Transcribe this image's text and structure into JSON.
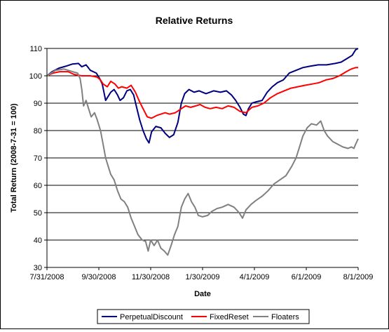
{
  "chart_data": {
    "type": "line",
    "title": "Relative Returns",
    "xlabel": "Date",
    "ylabel": "Total Return (2008-7-31 = 100)",
    "ylim": [
      30,
      110
    ],
    "yticks": [
      30,
      40,
      50,
      60,
      70,
      80,
      90,
      100,
      110
    ],
    "xlim": [
      "2008-07-31",
      "2009-08-01"
    ],
    "xticks": [
      {
        "date": "2008-07-31",
        "label": "7/31/2008"
      },
      {
        "date": "2008-09-30",
        "label": "9/30/2008"
      },
      {
        "date": "2008-11-30",
        "label": "11/30/2008"
      },
      {
        "date": "2009-01-30",
        "label": "1/30/2009"
      },
      {
        "date": "2009-04-01",
        "label": "4/1/2009"
      },
      {
        "date": "2009-06-01",
        "label": "6/1/2009"
      },
      {
        "date": "2009-08-01",
        "label": "8/1/2009"
      }
    ],
    "grid": "horizontal",
    "legend_position": "bottom",
    "series": [
      {
        "name": "PerpetualDiscount",
        "color": "#00007f",
        "points": [
          [
            "2008-07-31",
            100.0
          ],
          [
            "2008-08-06",
            101.5
          ],
          [
            "2008-08-14",
            102.8
          ],
          [
            "2008-08-22",
            103.5
          ],
          [
            "2008-08-30",
            104.3
          ],
          [
            "2008-09-06",
            104.5
          ],
          [
            "2008-09-10",
            103.3
          ],
          [
            "2008-09-15",
            104.0
          ],
          [
            "2008-09-20",
            102.0
          ],
          [
            "2008-09-27",
            101.0
          ],
          [
            "2008-10-01",
            99.0
          ],
          [
            "2008-10-04",
            97.0
          ],
          [
            "2008-10-08",
            91.0
          ],
          [
            "2008-10-11",
            92.5
          ],
          [
            "2008-10-14",
            94.0
          ],
          [
            "2008-10-18",
            95.0
          ],
          [
            "2008-10-22",
            93.0
          ],
          [
            "2008-10-25",
            91.0
          ],
          [
            "2008-10-29",
            92.0
          ],
          [
            "2008-11-02",
            94.5
          ],
          [
            "2008-11-06",
            95.0
          ],
          [
            "2008-11-10",
            93.0
          ],
          [
            "2008-11-13",
            89.0
          ],
          [
            "2008-11-17",
            84.0
          ],
          [
            "2008-11-21",
            80.0
          ],
          [
            "2008-11-25",
            77.0
          ],
          [
            "2008-11-28",
            75.5
          ],
          [
            "2008-12-01",
            79.5
          ],
          [
            "2008-12-06",
            81.5
          ],
          [
            "2008-12-12",
            81.0
          ],
          [
            "2008-12-17",
            79.0
          ],
          [
            "2008-12-22",
            77.5
          ],
          [
            "2008-12-27",
            78.5
          ],
          [
            "2009-01-01",
            83.0
          ],
          [
            "2009-01-05",
            90.0
          ],
          [
            "2009-01-09",
            93.5
          ],
          [
            "2009-01-14",
            95.0
          ],
          [
            "2009-01-20",
            94.0
          ],
          [
            "2009-01-26",
            94.5
          ],
          [
            "2009-02-03",
            93.5
          ],
          [
            "2009-02-12",
            94.5
          ],
          [
            "2009-02-20",
            94.0
          ],
          [
            "2009-02-27",
            94.5
          ],
          [
            "2009-03-05",
            93.0
          ],
          [
            "2009-03-10",
            91.0
          ],
          [
            "2009-03-15",
            88.5
          ],
          [
            "2009-03-19",
            86.0
          ],
          [
            "2009-03-22",
            85.5
          ],
          [
            "2009-03-25",
            88.0
          ],
          [
            "2009-03-29",
            90.0
          ],
          [
            "2009-04-03",
            90.5
          ],
          [
            "2009-04-10",
            91.0
          ],
          [
            "2009-04-16",
            94.0
          ],
          [
            "2009-04-22",
            96.0
          ],
          [
            "2009-04-28",
            97.5
          ],
          [
            "2009-05-05",
            98.5
          ],
          [
            "2009-05-12",
            101.0
          ],
          [
            "2009-05-20",
            102.0
          ],
          [
            "2009-05-28",
            103.0
          ],
          [
            "2009-06-05",
            103.5
          ],
          [
            "2009-06-15",
            104.0
          ],
          [
            "2009-06-25",
            104.0
          ],
          [
            "2009-07-05",
            104.5
          ],
          [
            "2009-07-12",
            105.0
          ],
          [
            "2009-07-20",
            106.5
          ],
          [
            "2009-07-25",
            107.5
          ],
          [
            "2009-07-29",
            109.5
          ],
          [
            "2009-08-01",
            110.0
          ]
        ]
      },
      {
        "name": "FixedReset",
        "color": "#ff0000",
        "points": [
          [
            "2008-07-31",
            100.0
          ],
          [
            "2008-08-07",
            101.0
          ],
          [
            "2008-08-15",
            101.5
          ],
          [
            "2008-08-25",
            101.5
          ],
          [
            "2008-09-01",
            100.5
          ],
          [
            "2008-09-10",
            100.0
          ],
          [
            "2008-09-20",
            100.0
          ],
          [
            "2008-09-28",
            99.5
          ],
          [
            "2008-10-02",
            98.5
          ],
          [
            "2008-10-05",
            97.0
          ],
          [
            "2008-10-10",
            96.0
          ],
          [
            "2008-10-14",
            98.0
          ],
          [
            "2008-10-19",
            97.0
          ],
          [
            "2008-10-23",
            95.5
          ],
          [
            "2008-10-27",
            96.0
          ],
          [
            "2008-11-02",
            95.5
          ],
          [
            "2008-11-07",
            96.5
          ],
          [
            "2008-11-12",
            94.0
          ],
          [
            "2008-11-17",
            90.5
          ],
          [
            "2008-11-21",
            88.0
          ],
          [
            "2008-11-26",
            85.0
          ],
          [
            "2008-12-01",
            84.5
          ],
          [
            "2008-12-07",
            85.5
          ],
          [
            "2008-12-12",
            86.0
          ],
          [
            "2008-12-17",
            86.5
          ],
          [
            "2008-12-22",
            86.0
          ],
          [
            "2008-12-29",
            86.5
          ],
          [
            "2009-01-05",
            88.0
          ],
          [
            "2009-01-10",
            89.0
          ],
          [
            "2009-01-16",
            88.5
          ],
          [
            "2009-01-22",
            89.0
          ],
          [
            "2009-01-27",
            89.5
          ],
          [
            "2009-02-02",
            88.5
          ],
          [
            "2009-02-08",
            88.0
          ],
          [
            "2009-02-15",
            88.5
          ],
          [
            "2009-02-22",
            88.0
          ],
          [
            "2009-03-01",
            89.0
          ],
          [
            "2009-03-08",
            88.5
          ],
          [
            "2009-03-15",
            87.0
          ],
          [
            "2009-03-22",
            86.5
          ],
          [
            "2009-03-29",
            88.5
          ],
          [
            "2009-04-05",
            89.0
          ],
          [
            "2009-04-12",
            90.0
          ],
          [
            "2009-04-20",
            92.0
          ],
          [
            "2009-04-28",
            93.5
          ],
          [
            "2009-05-06",
            94.5
          ],
          [
            "2009-05-14",
            95.5
          ],
          [
            "2009-05-22",
            96.0
          ],
          [
            "2009-05-30",
            96.5
          ],
          [
            "2009-06-08",
            97.0
          ],
          [
            "2009-06-16",
            97.5
          ],
          [
            "2009-06-24",
            98.5
          ],
          [
            "2009-07-02",
            99.0
          ],
          [
            "2009-07-10",
            100.0
          ],
          [
            "2009-07-18",
            101.5
          ],
          [
            "2009-07-24",
            102.5
          ],
          [
            "2009-07-29",
            103.0
          ],
          [
            "2009-08-01",
            103.0
          ]
        ]
      },
      {
        "name": "Floaters",
        "color": "#808080",
        "points": [
          [
            "2008-07-31",
            100.0
          ],
          [
            "2008-08-10",
            102.0
          ],
          [
            "2008-08-20",
            102.5
          ],
          [
            "2008-08-30",
            101.5
          ],
          [
            "2008-09-05",
            101.0
          ],
          [
            "2008-09-08",
            99.0
          ],
          [
            "2008-09-10",
            95.0
          ],
          [
            "2008-09-12",
            89.0
          ],
          [
            "2008-09-15",
            91.0
          ],
          [
            "2008-09-18",
            88.0
          ],
          [
            "2008-09-21",
            85.0
          ],
          [
            "2008-09-25",
            86.5
          ],
          [
            "2008-09-28",
            84.0
          ],
          [
            "2008-10-02",
            80.0
          ],
          [
            "2008-10-05",
            75.0
          ],
          [
            "2008-10-08",
            70.0
          ],
          [
            "2008-10-11",
            67.0
          ],
          [
            "2008-10-14",
            64.0
          ],
          [
            "2008-10-18",
            62.0
          ],
          [
            "2008-10-22",
            58.0
          ],
          [
            "2008-10-26",
            55.0
          ],
          [
            "2008-10-30",
            54.0
          ],
          [
            "2008-11-03",
            52.0
          ],
          [
            "2008-11-07",
            48.0
          ],
          [
            "2008-11-11",
            45.0
          ],
          [
            "2008-11-15",
            42.0
          ],
          [
            "2008-11-20",
            40.0
          ],
          [
            "2008-11-24",
            39.5
          ],
          [
            "2008-11-27",
            36.0
          ],
          [
            "2008-11-30",
            40.0
          ],
          [
            "2008-12-04",
            38.0
          ],
          [
            "2008-12-08",
            40.0
          ],
          [
            "2008-12-12",
            37.0
          ],
          [
            "2008-12-16",
            36.0
          ],
          [
            "2008-12-20",
            34.5
          ],
          [
            "2008-12-24",
            38.0
          ],
          [
            "2008-12-28",
            42.0
          ],
          [
            "2009-01-01",
            45.0
          ],
          [
            "2009-01-05",
            52.0
          ],
          [
            "2009-01-09",
            55.0
          ],
          [
            "2009-01-13",
            57.0
          ],
          [
            "2009-01-17",
            54.0
          ],
          [
            "2009-01-21",
            52.0
          ],
          [
            "2009-01-25",
            49.0
          ],
          [
            "2009-01-30",
            48.5
          ],
          [
            "2009-02-05",
            49.0
          ],
          [
            "2009-02-10",
            50.5
          ],
          [
            "2009-02-16",
            51.5
          ],
          [
            "2009-02-22",
            52.0
          ],
          [
            "2009-03-01",
            53.0
          ],
          [
            "2009-03-08",
            52.0
          ],
          [
            "2009-03-14",
            50.0
          ],
          [
            "2009-03-18",
            48.0
          ],
          [
            "2009-03-22",
            51.0
          ],
          [
            "2009-03-28",
            53.0
          ],
          [
            "2009-04-03",
            54.5
          ],
          [
            "2009-04-10",
            56.0
          ],
          [
            "2009-04-17",
            58.0
          ],
          [
            "2009-04-24",
            60.5
          ],
          [
            "2009-05-01",
            62.0
          ],
          [
            "2009-05-08",
            63.5
          ],
          [
            "2009-05-15",
            67.0
          ],
          [
            "2009-05-20",
            70.0
          ],
          [
            "2009-05-24",
            74.0
          ],
          [
            "2009-05-28",
            78.0
          ],
          [
            "2009-06-02",
            81.0
          ],
          [
            "2009-06-07",
            82.5
          ],
          [
            "2009-06-13",
            82.0
          ],
          [
            "2009-06-18",
            83.5
          ],
          [
            "2009-06-22",
            80.0
          ],
          [
            "2009-06-26",
            78.0
          ],
          [
            "2009-07-02",
            76.0
          ],
          [
            "2009-07-08",
            75.0
          ],
          [
            "2009-07-14",
            74.0
          ],
          [
            "2009-07-20",
            73.5
          ],
          [
            "2009-07-24",
            74.0
          ],
          [
            "2009-07-27",
            73.5
          ],
          [
            "2009-07-29",
            75.0
          ],
          [
            "2009-08-01",
            77.0
          ]
        ]
      }
    ]
  }
}
